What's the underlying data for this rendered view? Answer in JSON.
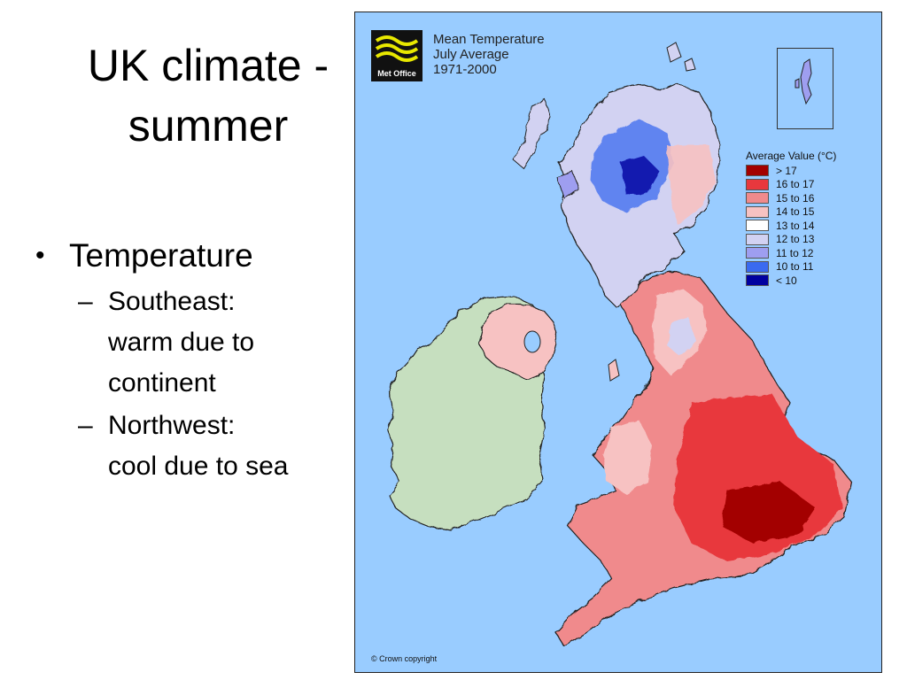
{
  "slide": {
    "title_line1": "UK climate -",
    "title_line2": "summer",
    "bullet": "Temperature",
    "sub_bullets": [
      {
        "line1": "Southeast:",
        "line2": "warm due to",
        "line3": "continent"
      },
      {
        "line1": "Northwest:",
        "line2": "cool due to sea",
        "line3": ""
      }
    ],
    "bullet_symbol": "•",
    "dash_symbol": "–"
  },
  "map": {
    "logo_text": "Met Office",
    "title_line1": "Mean Temperature",
    "title_line2": "July Average",
    "title_line3": "1971-2000",
    "copyright": "© Crown copyright",
    "sea_color": "#99ccff",
    "ireland_color": "#c6dfbf",
    "legend": {
      "title": "Average Value (°C)",
      "items": [
        {
          "label": "> 17",
          "color": "#a30000"
        },
        {
          "label": "16 to 17",
          "color": "#e8383d"
        },
        {
          "label": "15 to 16",
          "color": "#f08a8c"
        },
        {
          "label": "14 to 15",
          "color": "#f7c2c2"
        },
        {
          "label": "13 to 14",
          "color": "#ffffff"
        },
        {
          "label": "12 to 13",
          "color": "#d2d2f2"
        },
        {
          "label": "11 to 12",
          "color": "#9e9ef0"
        },
        {
          "label": "10 to 11",
          "color": "#3a6af0"
        },
        {
          "label": "< 10",
          "color": "#0000a0"
        }
      ]
    }
  }
}
